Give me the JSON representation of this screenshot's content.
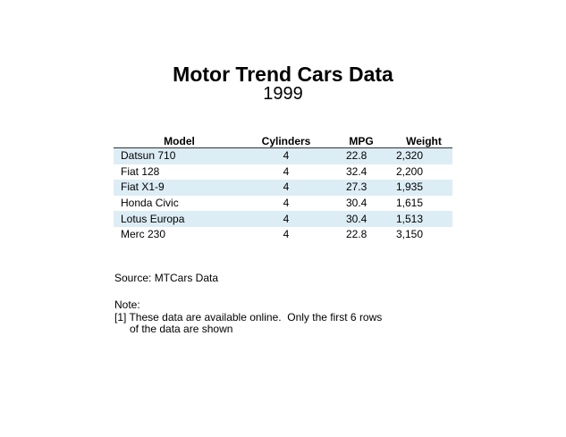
{
  "title": "Motor Trend Cars Data",
  "subtitle": "1999",
  "table": {
    "columns": [
      "Model",
      "Cylinders",
      "MPG",
      "Weight"
    ],
    "rows": [
      {
        "model": "Datsun 710",
        "cylinders": "4",
        "mpg": "22.8",
        "weight": "2,320"
      },
      {
        "model": "Fiat 128",
        "cylinders": "4",
        "mpg": "32.4",
        "weight": "2,200"
      },
      {
        "model": "Fiat X1-9",
        "cylinders": "4",
        "mpg": "27.3",
        "weight": "1,935"
      },
      {
        "model": "Honda Civic",
        "cylinders": "4",
        "mpg": "30.4",
        "weight": "1,615"
      },
      {
        "model": "Lotus Europa",
        "cylinders": "4",
        "mpg": "30.4",
        "weight": "1,513"
      },
      {
        "model": "Merc 230",
        "cylinders": "4",
        "mpg": "22.8",
        "weight": "3,150"
      }
    ],
    "stripe_color": "#dcedf5",
    "rule_color": "#333333"
  },
  "source": "Source: MTCars Data",
  "notes": {
    "heading": "Note:",
    "line1": "[1] These data are available online.  Only the first 6 rows",
    "line2": "of the data are shown"
  }
}
